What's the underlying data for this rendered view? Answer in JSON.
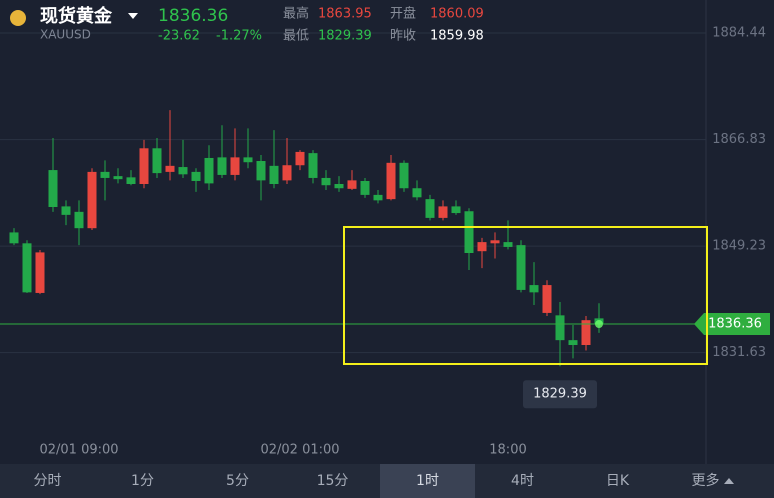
{
  "header": {
    "name": "现货黄金",
    "symbol": "XAUUSD",
    "price": "1836.36",
    "change": "-23.62",
    "change_pct": "-1.27%",
    "high_label": "最高",
    "high": "1863.95",
    "open_label": "开盘",
    "open": "1860.09",
    "low_label": "最低",
    "low": "1829.39",
    "prev_label": "昨收",
    "prev": "1859.98"
  },
  "chart_data": {
    "type": "candlestick",
    "categories": [
      null,
      null,
      null,
      null,
      null,
      "02/01 09:00",
      null,
      null,
      null,
      null,
      null,
      null,
      null,
      null,
      null,
      null,
      null,
      null,
      null,
      null,
      null,
      null,
      "02/02 01:00",
      null,
      null,
      null,
      null,
      null,
      null,
      null,
      null,
      null,
      null,
      null,
      null,
      null,
      null,
      null,
      "18:00",
      null,
      null,
      null,
      null,
      null,
      null,
      null
    ],
    "open": [
      1851.5,
      1849.7,
      1841.5,
      1861.8,
      1855.8,
      1854.9,
      1852.2,
      1861.5,
      1860.8,
      1860.6,
      1859.5,
      1865.4,
      1861.5,
      1862.3,
      1861.5,
      1863.8,
      1863.9,
      1861.0,
      1863.9,
      1863.3,
      1862.5,
      1860.1,
      1862.6,
      1864.6,
      1860.5,
      1859.5,
      1858.7,
      1860.0,
      1857.7,
      1857.0,
      1863.0,
      1858.8,
      1857.0,
      1853.9,
      1855.8,
      1855.0,
      1848.4,
      1849.7,
      1849.9,
      1849.4,
      1842.8,
      1838.2,
      1837.8,
      1833.7,
      1832.9,
      1837.3
    ],
    "high": [
      1852.2,
      1850.2,
      1848.6,
      1867.1,
      1856.8,
      1856.8,
      1862.1,
      1863.4,
      1862.1,
      1861.8,
      1866.8,
      1867.1,
      1871.7,
      1866.8,
      1862.1,
      1865.9,
      1869.2,
      1868.7,
      1868.7,
      1864.3,
      1868.4,
      1867.1,
      1865.1,
      1865.1,
      1861.8,
      1860.8,
      1861.8,
      1860.5,
      1858.5,
      1864.3,
      1863.4,
      1860.1,
      1857.7,
      1856.8,
      1856.8,
      1855.5,
      1850.6,
      1851.5,
      1853.5,
      1850.2,
      1846.6,
      1843.6,
      1840.0,
      1836.2,
      1837.7,
      1839.8
    ],
    "low": [
      1849.4,
      1841.5,
      1841.3,
      1854.9,
      1852.7,
      1849.4,
      1851.9,
      1856.8,
      1859.6,
      1859.3,
      1858.8,
      1860.5,
      1860.1,
      1860.5,
      1858.2,
      1858.5,
      1860.5,
      1860.1,
      1862.1,
      1856.8,
      1858.8,
      1859.5,
      1861.8,
      1859.6,
      1858.5,
      1858.2,
      1858.5,
      1857.2,
      1856.3,
      1856.8,
      1858.2,
      1856.8,
      1853.5,
      1853.5,
      1854.4,
      1845.3,
      1845.6,
      1847.2,
      1848.7,
      1841.6,
      1839.5,
      1837.7,
      1829.39,
      1830.7,
      1832.0,
      1834.9
    ],
    "close": [
      1849.7,
      1841.6,
      1848.2,
      1855.7,
      1854.4,
      1852.2,
      1861.5,
      1860.5,
      1860.3,
      1859.5,
      1865.4,
      1861.3,
      1862.5,
      1861.1,
      1860.0,
      1859.6,
      1861.0,
      1863.9,
      1863.1,
      1860.1,
      1859.5,
      1862.6,
      1864.8,
      1860.5,
      1859.3,
      1858.8,
      1860.1,
      1857.7,
      1856.8,
      1863.0,
      1858.8,
      1857.3,
      1853.9,
      1855.8,
      1854.7,
      1848.1,
      1849.9,
      1850.2,
      1849.1,
      1842.0,
      1841.6,
      1842.8,
      1833.7,
      1832.9,
      1837.0,
      1836.36
    ],
    "up_color": "#e8473f",
    "down_color": "#23a94a",
    "ylim": [
      1813.9,
      1889.9
    ],
    "yticks": [
      1884.44,
      1866.83,
      1849.23,
      1831.63
    ],
    "grid": true
  },
  "tabs": [
    "分时",
    "1分",
    "5分",
    "15分",
    "1时",
    "4时",
    "日K",
    "更多"
  ],
  "active_tab": 4
}
